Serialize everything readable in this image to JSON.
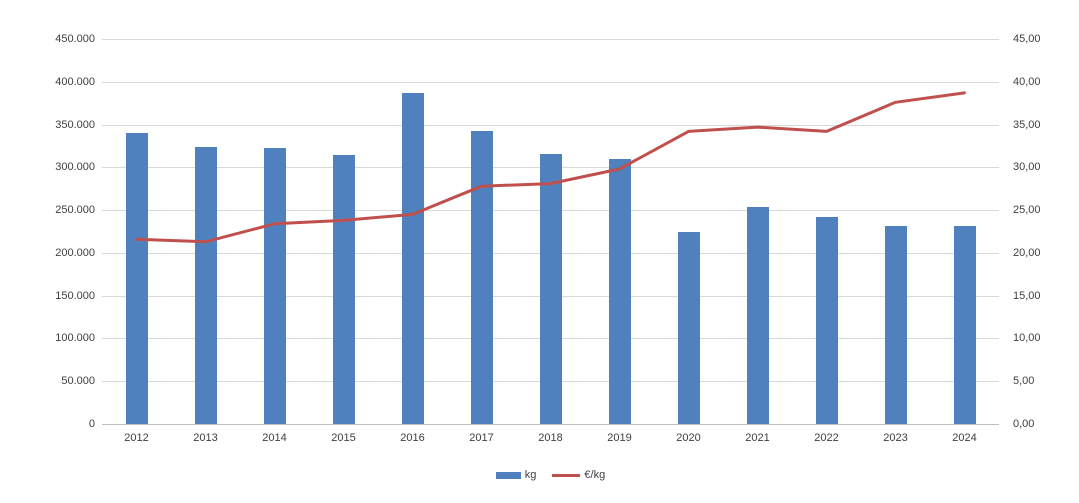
{
  "chart_data": {
    "type": "combo-bar-line",
    "title": "",
    "categories": [
      "2012",
      "2013",
      "2014",
      "2015",
      "2016",
      "2017",
      "2018",
      "2019",
      "2020",
      "2021",
      "2022",
      "2023",
      "2024"
    ],
    "series": [
      {
        "name": "kg",
        "type": "bar",
        "axis": "left",
        "color": "#4e81bd",
        "values": [
          340000,
          324000,
          323000,
          314000,
          387000,
          343000,
          316000,
          310000,
          225000,
          254000,
          242000,
          231000,
          231000
        ]
      },
      {
        "name": "€/kg",
        "type": "line",
        "axis": "right",
        "color": "#c0504d",
        "values": [
          21.6,
          21.3,
          23.4,
          23.8,
          24.5,
          27.8,
          28.1,
          29.8,
          34.2,
          34.7,
          34.2,
          37.6,
          38.7
        ]
      }
    ],
    "left_axis": {
      "min": 0,
      "max": 450000,
      "step": 50000,
      "tick_labels": [
        "450.000",
        "400.000",
        "350.000",
        "300.000",
        "250.000",
        "200.000",
        "150.000",
        "100.000",
        "50.000",
        "0"
      ]
    },
    "right_axis": {
      "min": 0,
      "max": 45,
      "step": 5,
      "tick_labels": [
        "45,00",
        "40,00",
        "35,00",
        "30,00",
        "25,00",
        "20,00",
        "15,00",
        "10,00",
        "5,00",
        "0,00"
      ]
    },
    "grid": true,
    "grid_color": "#d9d9d9",
    "axis_line_color": "#bfbfbf",
    "text_color": "#404040",
    "background": "#ffffff",
    "legend_position": "bottom"
  },
  "legend": {
    "items": [
      {
        "label": "kg",
        "swatch": "bar",
        "color": "#4e81bd"
      },
      {
        "label": "€/kg",
        "swatch": "line",
        "color": "#c0504d"
      }
    ]
  }
}
